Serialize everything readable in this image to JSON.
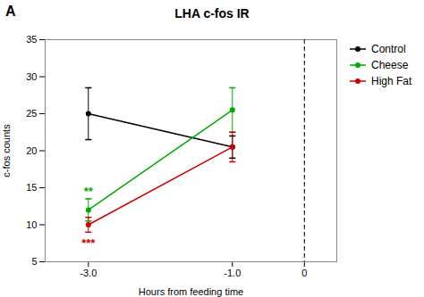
{
  "chart_data": {
    "type": "line",
    "title": "LHA c-fos IR",
    "panel_label": "A",
    "xlabel": "Hours from feeding time",
    "ylabel": "c-fos counts",
    "x": [
      -3.0,
      -1.0
    ],
    "series": [
      {
        "name": "Control",
        "color": "#000000",
        "values": [
          25.0,
          20.5
        ],
        "errors": [
          3.5,
          1.5
        ]
      },
      {
        "name": "Cheese",
        "color": "#00aa00",
        "values": [
          12.0,
          25.5
        ],
        "errors": [
          1.5,
          3.0
        ]
      },
      {
        "name": "High Fat",
        "color": "#cc0000",
        "values": [
          10.0,
          20.5
        ],
        "errors": [
          1.0,
          2.0
        ]
      }
    ],
    "marker": "circle",
    "xlim": [
      -3.6,
      0.45
    ],
    "xticks": [
      {
        "value": -3.0,
        "label": "-3.0"
      },
      {
        "value": -1.0,
        "label": "-1.0"
      },
      0
    ],
    "ylim": [
      5,
      35
    ],
    "yticks": [
      5,
      10,
      15,
      20,
      25,
      30,
      35
    ],
    "vlines": [
      {
        "x": 0,
        "color": "#000000",
        "line_style": "dashed"
      }
    ],
    "annotations": [
      {
        "text": "**",
        "x": -3.0,
        "y": 14.5,
        "color": "#00aa00"
      },
      {
        "text": "***",
        "x": -3.0,
        "y": 7.5,
        "color": "#cc0000"
      }
    ],
    "legend": "upper right",
    "grid": false
  }
}
